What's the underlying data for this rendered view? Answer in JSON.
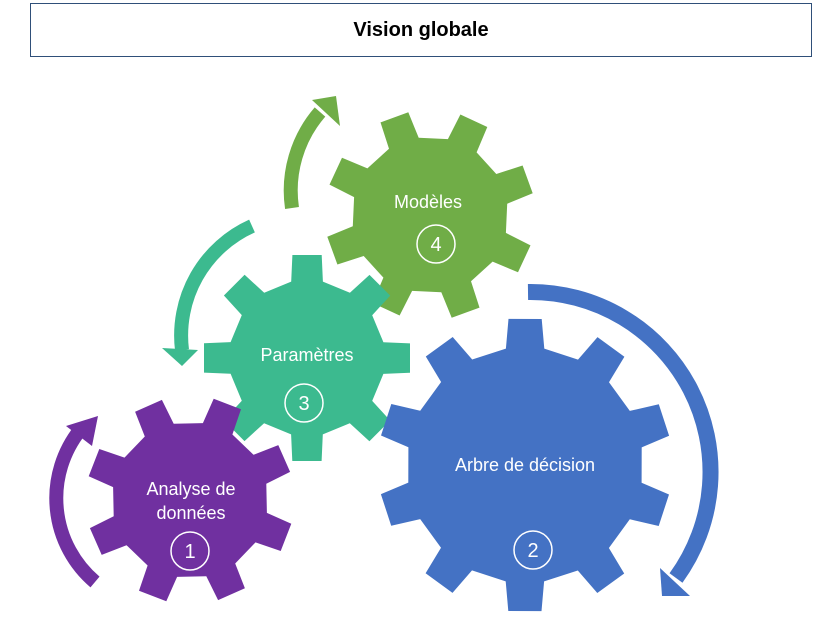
{
  "title": "Vision globale",
  "gears": [
    {
      "id": "analyse",
      "label_lines": [
        "Analyse de",
        "données"
      ],
      "number": "1",
      "color": "#7030a0"
    },
    {
      "id": "arbre",
      "label_lines": [
        "Arbre de décision"
      ],
      "number": "2",
      "color": "#4472c4"
    },
    {
      "id": "parametres",
      "label_lines": [
        "Paramètres"
      ],
      "number": "3",
      "color": "#3cba8f"
    },
    {
      "id": "modeles",
      "label_lines": [
        "Modèles"
      ],
      "number": "4",
      "color": "#70ad47"
    }
  ]
}
